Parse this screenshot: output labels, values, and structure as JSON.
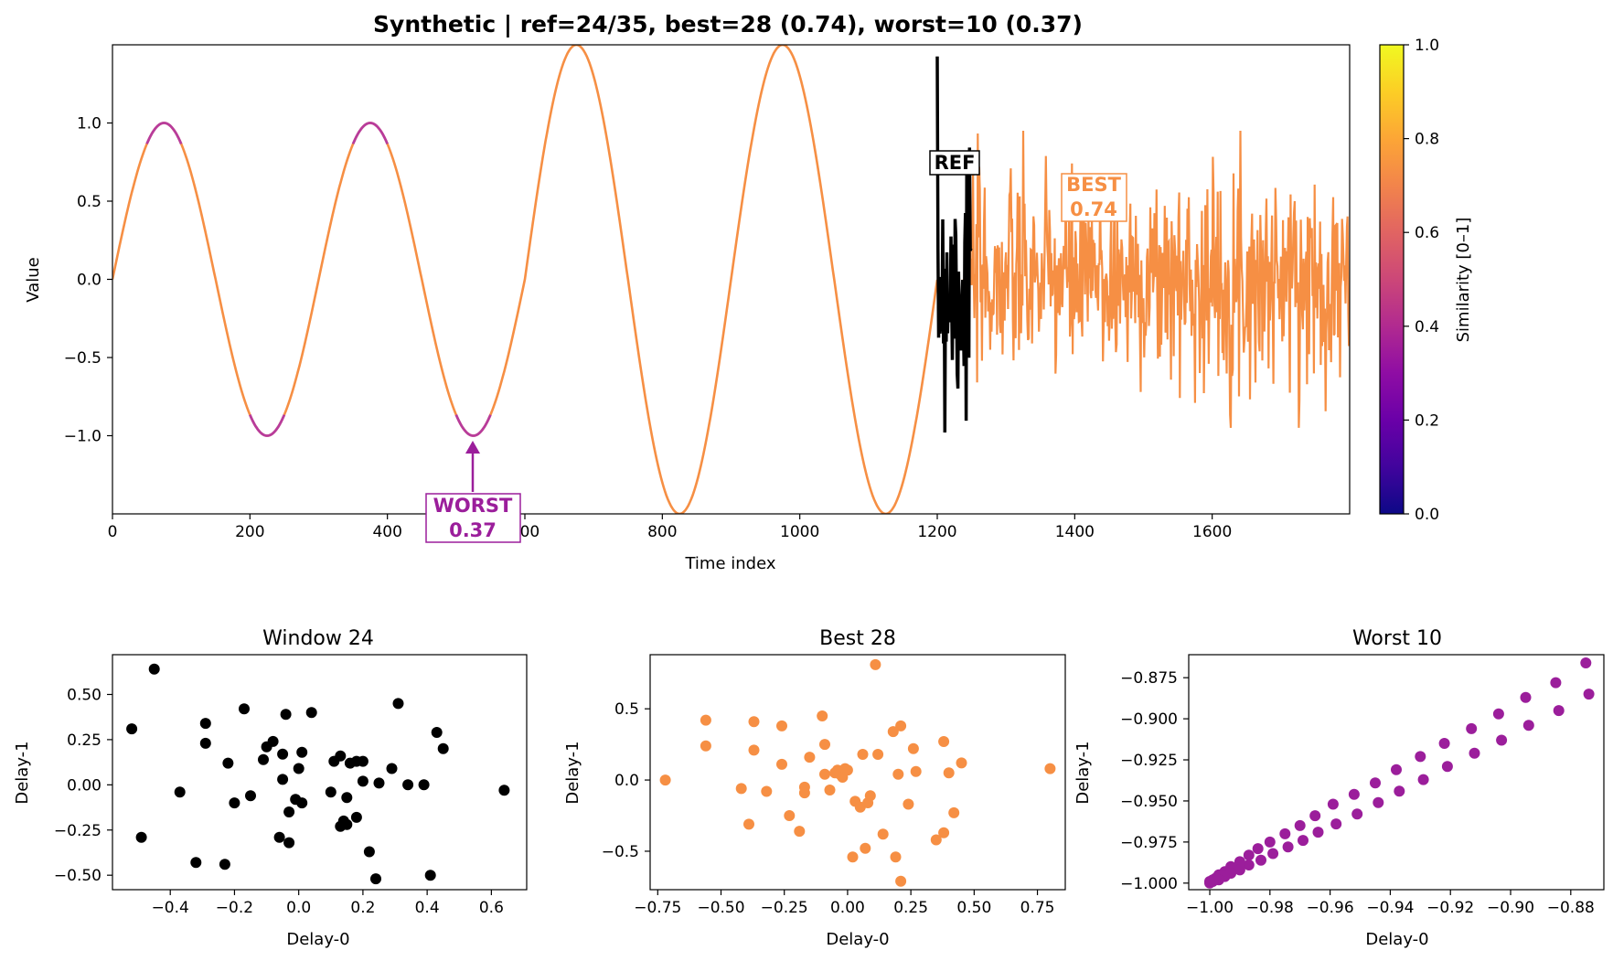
{
  "figure": {
    "title": "Synthetic | ref=24/35, best=28 (0.74), worst=10 (0.37)"
  },
  "chart_data": [
    {
      "id": "main",
      "type": "line",
      "xlabel": "Time index",
      "ylabel": "Value",
      "xlim": [
        0,
        1800
      ],
      "ylim": [
        -1.5,
        1.5
      ],
      "xticks": [
        0,
        200,
        400,
        600,
        800,
        1000,
        1200,
        1400,
        1600
      ],
      "xtick_labels": [
        "0",
        "200",
        "400",
        "600",
        "800",
        "1000",
        "1200",
        "1400",
        "1600"
      ],
      "yticks": [
        -1.0,
        -0.5,
        0.0,
        0.5,
        1.0
      ],
      "ytick_labels": [
        "−1.0",
        "−0.5",
        "0.0",
        "0.5",
        "1.0"
      ],
      "signal_segments": [
        {
          "x_start": 0,
          "x_end": 600,
          "kind": "sine",
          "amplitude": 1.0,
          "period": 300
        },
        {
          "x_start": 600,
          "x_end": 1200,
          "kind": "sine",
          "amplitude": 1.5,
          "period": 300
        },
        {
          "x_start": 1200,
          "x_end": 1800,
          "kind": "noise",
          "std": 0.32,
          "clip": 0.95
        }
      ],
      "similarity_color": "#f68f44",
      "low_similarity_color": "#b83c9b",
      "colorbar": {
        "label": "Similarity [0–1]",
        "range": [
          0,
          1
        ],
        "ticks": [
          0.0,
          0.2,
          0.4,
          0.6,
          0.8,
          1.0
        ],
        "tick_labels": [
          "0.0",
          "0.2",
          "0.4",
          "0.6",
          "0.8",
          "1.0"
        ],
        "colormap": "plasma"
      },
      "ref": {
        "label": "REF",
        "window": 24,
        "x_start": 1200,
        "x_end": 1250,
        "color": "#000000"
      },
      "best": {
        "label": "BEST",
        "value_label": "0.74",
        "window": 28,
        "x": 1400,
        "y": 0.55,
        "color": "#f68f44"
      },
      "worst": {
        "label": "WORST",
        "value_label": "0.37",
        "window": 10,
        "point_x": 525,
        "point_y": -1.0,
        "color": "#9b1e9b"
      }
    },
    {
      "id": "window24",
      "type": "scatter",
      "title": "Window 24",
      "xlabel": "Delay-0",
      "ylabel": "Delay-1",
      "xlim": [
        -0.58,
        0.71
      ],
      "ylim": [
        -0.58,
        0.72
      ],
      "xticks": [
        -0.4,
        -0.2,
        0.0,
        0.2,
        0.4,
        0.6
      ],
      "xtick_labels": [
        "−0.4",
        "−0.2",
        "0.0",
        "0.2",
        "0.4",
        "0.6"
      ],
      "yticks": [
        -0.5,
        -0.25,
        0.0,
        0.25,
        0.5
      ],
      "ytick_labels": [
        "−0.50",
        "−0.25",
        "0.00",
        "0.25",
        "0.50"
      ],
      "color": "#000000",
      "points": [
        [
          -0.45,
          0.64
        ],
        [
          -0.52,
          0.31
        ],
        [
          -0.49,
          -0.29
        ],
        [
          -0.37,
          -0.04
        ],
        [
          -0.32,
          -0.43
        ],
        [
          -0.29,
          0.34
        ],
        [
          -0.29,
          0.23
        ],
        [
          -0.23,
          -0.44
        ],
        [
          -0.22,
          0.12
        ],
        [
          -0.2,
          -0.1
        ],
        [
          -0.17,
          0.42
        ],
        [
          -0.15,
          -0.06
        ],
        [
          -0.11,
          0.14
        ],
        [
          -0.1,
          0.21
        ],
        [
          -0.08,
          0.24
        ],
        [
          -0.06,
          -0.29
        ],
        [
          -0.05,
          0.17
        ],
        [
          -0.05,
          0.03
        ],
        [
          -0.04,
          0.39
        ],
        [
          -0.03,
          -0.32
        ],
        [
          -0.03,
          -0.15
        ],
        [
          -0.01,
          -0.08
        ],
        [
          0.0,
          0.09
        ],
        [
          0.01,
          -0.1
        ],
        [
          0.01,
          0.18
        ],
        [
          0.04,
          0.4
        ],
        [
          0.1,
          -0.04
        ],
        [
          0.11,
          0.13
        ],
        [
          0.13,
          0.16
        ],
        [
          0.13,
          -0.23
        ],
        [
          0.14,
          -0.2
        ],
        [
          0.15,
          -0.07
        ],
        [
          0.15,
          -0.22
        ],
        [
          0.16,
          0.12
        ],
        [
          0.18,
          0.13
        ],
        [
          0.18,
          -0.18
        ],
        [
          0.2,
          0.02
        ],
        [
          0.2,
          0.13
        ],
        [
          0.22,
          -0.37
        ],
        [
          0.24,
          -0.52
        ],
        [
          0.25,
          0.01
        ],
        [
          0.29,
          0.09
        ],
        [
          0.31,
          0.45
        ],
        [
          0.34,
          0.0
        ],
        [
          0.39,
          0.0
        ],
        [
          0.41,
          -0.5
        ],
        [
          0.43,
          0.29
        ],
        [
          0.45,
          0.2
        ],
        [
          0.64,
          -0.03
        ]
      ]
    },
    {
      "id": "best28",
      "type": "scatter",
      "title": "Best 28",
      "xlabel": "Delay-0",
      "ylabel": "Delay-1",
      "xlim": [
        -0.78,
        0.86
      ],
      "ylim": [
        -0.77,
        0.88
      ],
      "xticks": [
        -0.75,
        -0.5,
        -0.25,
        0.0,
        0.25,
        0.5,
        0.75
      ],
      "xtick_labels": [
        "−0.75",
        "−0.50",
        "−0.25",
        "0.00",
        "0.25",
        "0.50",
        "0.75"
      ],
      "yticks": [
        -0.5,
        0.0,
        0.5
      ],
      "ytick_labels": [
        "−0.5",
        "0.0",
        "0.5"
      ],
      "color": "#f68f44",
      "points": [
        [
          -0.72,
          0.0
        ],
        [
          -0.56,
          0.42
        ],
        [
          -0.56,
          0.24
        ],
        [
          -0.42,
          -0.06
        ],
        [
          -0.39,
          -0.31
        ],
        [
          -0.37,
          0.41
        ],
        [
          -0.37,
          0.21
        ],
        [
          -0.32,
          -0.08
        ],
        [
          -0.26,
          0.38
        ],
        [
          -0.26,
          0.11
        ],
        [
          -0.23,
          -0.25
        ],
        [
          -0.19,
          -0.36
        ],
        [
          -0.17,
          -0.09
        ],
        [
          -0.17,
          -0.05
        ],
        [
          -0.15,
          0.16
        ],
        [
          -0.1,
          0.45
        ],
        [
          -0.09,
          0.25
        ],
        [
          -0.09,
          0.04
        ],
        [
          -0.07,
          -0.07
        ],
        [
          -0.05,
          0.05
        ],
        [
          -0.04,
          0.07
        ],
        [
          -0.03,
          0.04
        ],
        [
          -0.02,
          0.02
        ],
        [
          -0.01,
          0.08
        ],
        [
          0.0,
          0.07
        ],
        [
          0.02,
          -0.54
        ],
        [
          0.03,
          -0.15
        ],
        [
          0.05,
          -0.19
        ],
        [
          0.06,
          0.18
        ],
        [
          0.07,
          -0.48
        ],
        [
          0.08,
          -0.16
        ],
        [
          0.09,
          -0.11
        ],
        [
          0.11,
          0.81
        ],
        [
          0.12,
          0.18
        ],
        [
          0.14,
          -0.38
        ],
        [
          0.18,
          0.34
        ],
        [
          0.19,
          -0.54
        ],
        [
          0.2,
          0.04
        ],
        [
          0.21,
          0.38
        ],
        [
          0.21,
          -0.71
        ],
        [
          0.24,
          -0.17
        ],
        [
          0.26,
          0.22
        ],
        [
          0.27,
          0.06
        ],
        [
          0.35,
          -0.42
        ],
        [
          0.38,
          0.27
        ],
        [
          0.38,
          -0.37
        ],
        [
          0.4,
          0.05
        ],
        [
          0.42,
          -0.23
        ],
        [
          0.45,
          0.12
        ],
        [
          0.8,
          0.08
        ]
      ]
    },
    {
      "id": "worst10",
      "type": "scatter",
      "title": "Worst 10",
      "xlabel": "Delay-0",
      "ylabel": "Delay-1",
      "xlim": [
        -1.007,
        -0.869
      ],
      "ylim": [
        -1.004,
        -0.861
      ],
      "xticks": [
        -1.0,
        -0.98,
        -0.96,
        -0.94,
        -0.92,
        -0.9,
        -0.88
      ],
      "xtick_labels": [
        "−1.00",
        "−0.98",
        "−0.96",
        "−0.94",
        "−0.92",
        "−0.90",
        "−0.88"
      ],
      "yticks": [
        -1.0,
        -0.975,
        -0.95,
        -0.925,
        -0.9,
        -0.875
      ],
      "ytick_labels": [
        "−1.000",
        "−0.975",
        "−0.950",
        "−0.925",
        "−0.900",
        "−0.875"
      ],
      "color": "#9b1e9b",
      "points": [
        [
          -0.875,
          -0.866
        ],
        [
          -0.874,
          -0.885
        ],
        [
          -0.885,
          -0.878
        ],
        [
          -0.884,
          -0.895
        ],
        [
          -0.895,
          -0.887
        ],
        [
          -0.894,
          -0.904
        ],
        [
          -0.904,
          -0.897
        ],
        [
          -0.903,
          -0.913
        ],
        [
          -0.913,
          -0.906
        ],
        [
          -0.912,
          -0.921
        ],
        [
          -0.922,
          -0.915
        ],
        [
          -0.921,
          -0.929
        ],
        [
          -0.93,
          -0.923
        ],
        [
          -0.929,
          -0.937
        ],
        [
          -0.938,
          -0.931
        ],
        [
          -0.937,
          -0.944
        ],
        [
          -0.945,
          -0.939
        ],
        [
          -0.944,
          -0.951
        ],
        [
          -0.952,
          -0.946
        ],
        [
          -0.951,
          -0.958
        ],
        [
          -0.959,
          -0.952
        ],
        [
          -0.958,
          -0.964
        ],
        [
          -0.965,
          -0.959
        ],
        [
          -0.964,
          -0.969
        ],
        [
          -0.97,
          -0.965
        ],
        [
          -0.969,
          -0.974
        ],
        [
          -0.975,
          -0.97
        ],
        [
          -0.974,
          -0.978
        ],
        [
          -0.98,
          -0.975
        ],
        [
          -0.979,
          -0.982
        ],
        [
          -0.984,
          -0.979
        ],
        [
          -0.983,
          -0.986
        ],
        [
          -0.987,
          -0.983
        ],
        [
          -0.987,
          -0.989
        ],
        [
          -0.99,
          -0.987
        ],
        [
          -0.99,
          -0.992
        ],
        [
          -0.993,
          -0.99
        ],
        [
          -0.993,
          -0.994
        ],
        [
          -0.995,
          -0.993
        ],
        [
          -0.995,
          -0.996
        ],
        [
          -0.997,
          -0.995
        ],
        [
          -0.997,
          -0.998
        ],
        [
          -0.998,
          -0.997
        ],
        [
          -0.999,
          -0.999
        ],
        [
          -0.999,
          -0.998
        ],
        [
          -1.0,
          -1.0
        ],
        [
          -1.0,
          -0.999
        ]
      ]
    }
  ]
}
